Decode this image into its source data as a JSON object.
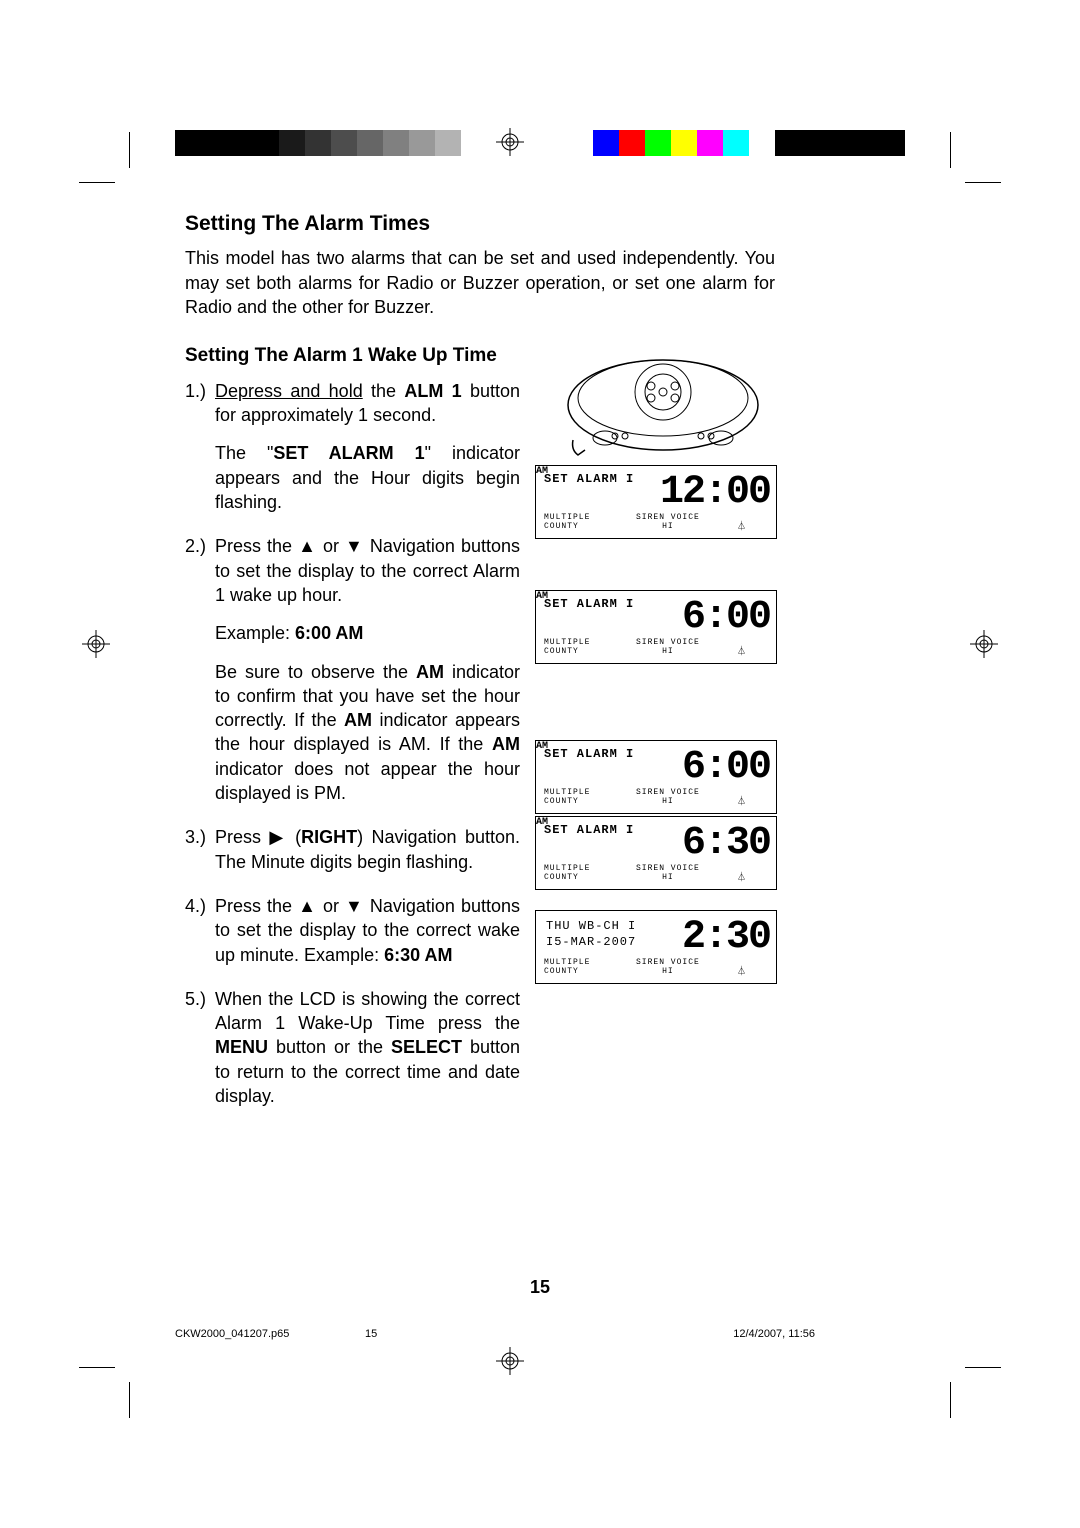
{
  "color_bar_left": [
    "#000000",
    "#000000",
    "#000000",
    "#000000",
    "#1a1a1a",
    "#333333",
    "#4d4d4d",
    "#666666",
    "#808080",
    "#999999",
    "#b3b3b3",
    "#ffffff"
  ],
  "color_bar_right": [
    "#0000ff",
    "#ff0000",
    "#00ff00",
    "#ffff00",
    "#ff00ff",
    "#00ffff",
    "#ffffff",
    "#000000",
    "#000000",
    "#000000",
    "#000000",
    "#000000"
  ],
  "headings": {
    "main": "Setting The Alarm Times",
    "sub": "Setting The Alarm 1 Wake Up Time"
  },
  "intro": "This model has two alarms that can be set and used independently. You may set both alarms for Radio or Buzzer operation, or set one alarm for Radio and the other for Buzzer.",
  "steps": [
    {
      "num": "1.)",
      "parts": [
        {
          "type": "line",
          "segments": [
            {
              "t": "Depress and hold",
              "style": "u"
            },
            {
              "t": " the "
            },
            {
              "t": "ALM 1",
              "style": "b"
            },
            {
              "t": " button for approximately 1 second."
            }
          ]
        },
        {
          "type": "line",
          "segments": [
            {
              "t": "The \""
            },
            {
              "t": "SET ALARM 1",
              "style": "b"
            },
            {
              "t": "\" indicator appears and the Hour digits begin flashing."
            }
          ]
        }
      ]
    },
    {
      "num": "2.)",
      "parts": [
        {
          "type": "line",
          "segments": [
            {
              "t": "Press the ▲ or ▼ Navigation buttons to set the display to the correct Alarm 1 wake up hour."
            }
          ]
        },
        {
          "type": "line",
          "segments": [
            {
              "t": "Example: "
            },
            {
              "t": "6:00 AM",
              "style": "b"
            }
          ]
        },
        {
          "type": "line",
          "segments": [
            {
              "t": "Be sure to observe the "
            },
            {
              "t": "AM",
              "style": "b"
            },
            {
              "t": " indicator to confirm that you have set the hour correctly. If the "
            },
            {
              "t": "AM",
              "style": "b"
            },
            {
              "t": " indicator appears the hour displayed is AM. If the "
            },
            {
              "t": "AM",
              "style": "b"
            },
            {
              "t": " indicator does not appear the hour displayed is PM."
            }
          ]
        }
      ]
    },
    {
      "num": "3.)",
      "parts": [
        {
          "type": "line",
          "segments": [
            {
              "t": "Press ▶ ("
            },
            {
              "t": "RIGHT",
              "style": "b"
            },
            {
              "t": ") Navigation button. The Minute digits begin flashing."
            }
          ]
        }
      ]
    },
    {
      "num": "4.)",
      "parts": [
        {
          "type": "line",
          "segments": [
            {
              "t": "Press the ▲ or ▼ Navigation buttons to set the display to the correct wake up minute. Example: "
            },
            {
              "t": "6:30 AM",
              "style": "b"
            }
          ]
        }
      ]
    },
    {
      "num": "5.)",
      "parts": [
        {
          "type": "line",
          "segments": [
            {
              "t": "When the LCD is showing the correct Alarm 1 Wake-Up Time press the "
            },
            {
              "t": "MENU",
              "style": "b"
            },
            {
              "t": " button or the "
            },
            {
              "t": "SELECT",
              "style": "b"
            },
            {
              "t": " button to return to the correct time and date display."
            }
          ]
        }
      ]
    }
  ],
  "lcds": [
    {
      "set": "SET ALARM I",
      "am": "AM",
      "time": "12:00",
      "mc": "MULTIPLE\nCOUNTY",
      "sv": "SIREN VOICE\nHI"
    },
    {
      "set": "SET ALARM I",
      "am": "AM",
      "time": "6:00",
      "mc": "MULTIPLE\nCOUNTY",
      "sv": "SIREN VOICE\nHI"
    },
    {
      "set": "SET ALARM I",
      "am": "AM",
      "time": "6:00",
      "mc": "MULTIPLE\nCOUNTY",
      "sv": "SIREN VOICE\nHI"
    },
    {
      "set": "SET ALARM I",
      "am": "AM",
      "time": "6:30",
      "mc": "MULTIPLE\nCOUNTY",
      "sv": "SIREN VOICE\nHI"
    },
    {
      "thu": "THU  WB-CH  I",
      "date": "I5-MAR-2007",
      "time": "2:30",
      "mc": "MULTIPLE\nCOUNTY",
      "sv": "SIREN VOICE\nHI"
    }
  ],
  "lcd_positions": [
    115,
    240,
    390,
    466,
    560
  ],
  "page_number": "15",
  "footer": {
    "file": "CKW2000_041207.p65",
    "page": "15",
    "date": "12/4/2007, 11:56"
  }
}
